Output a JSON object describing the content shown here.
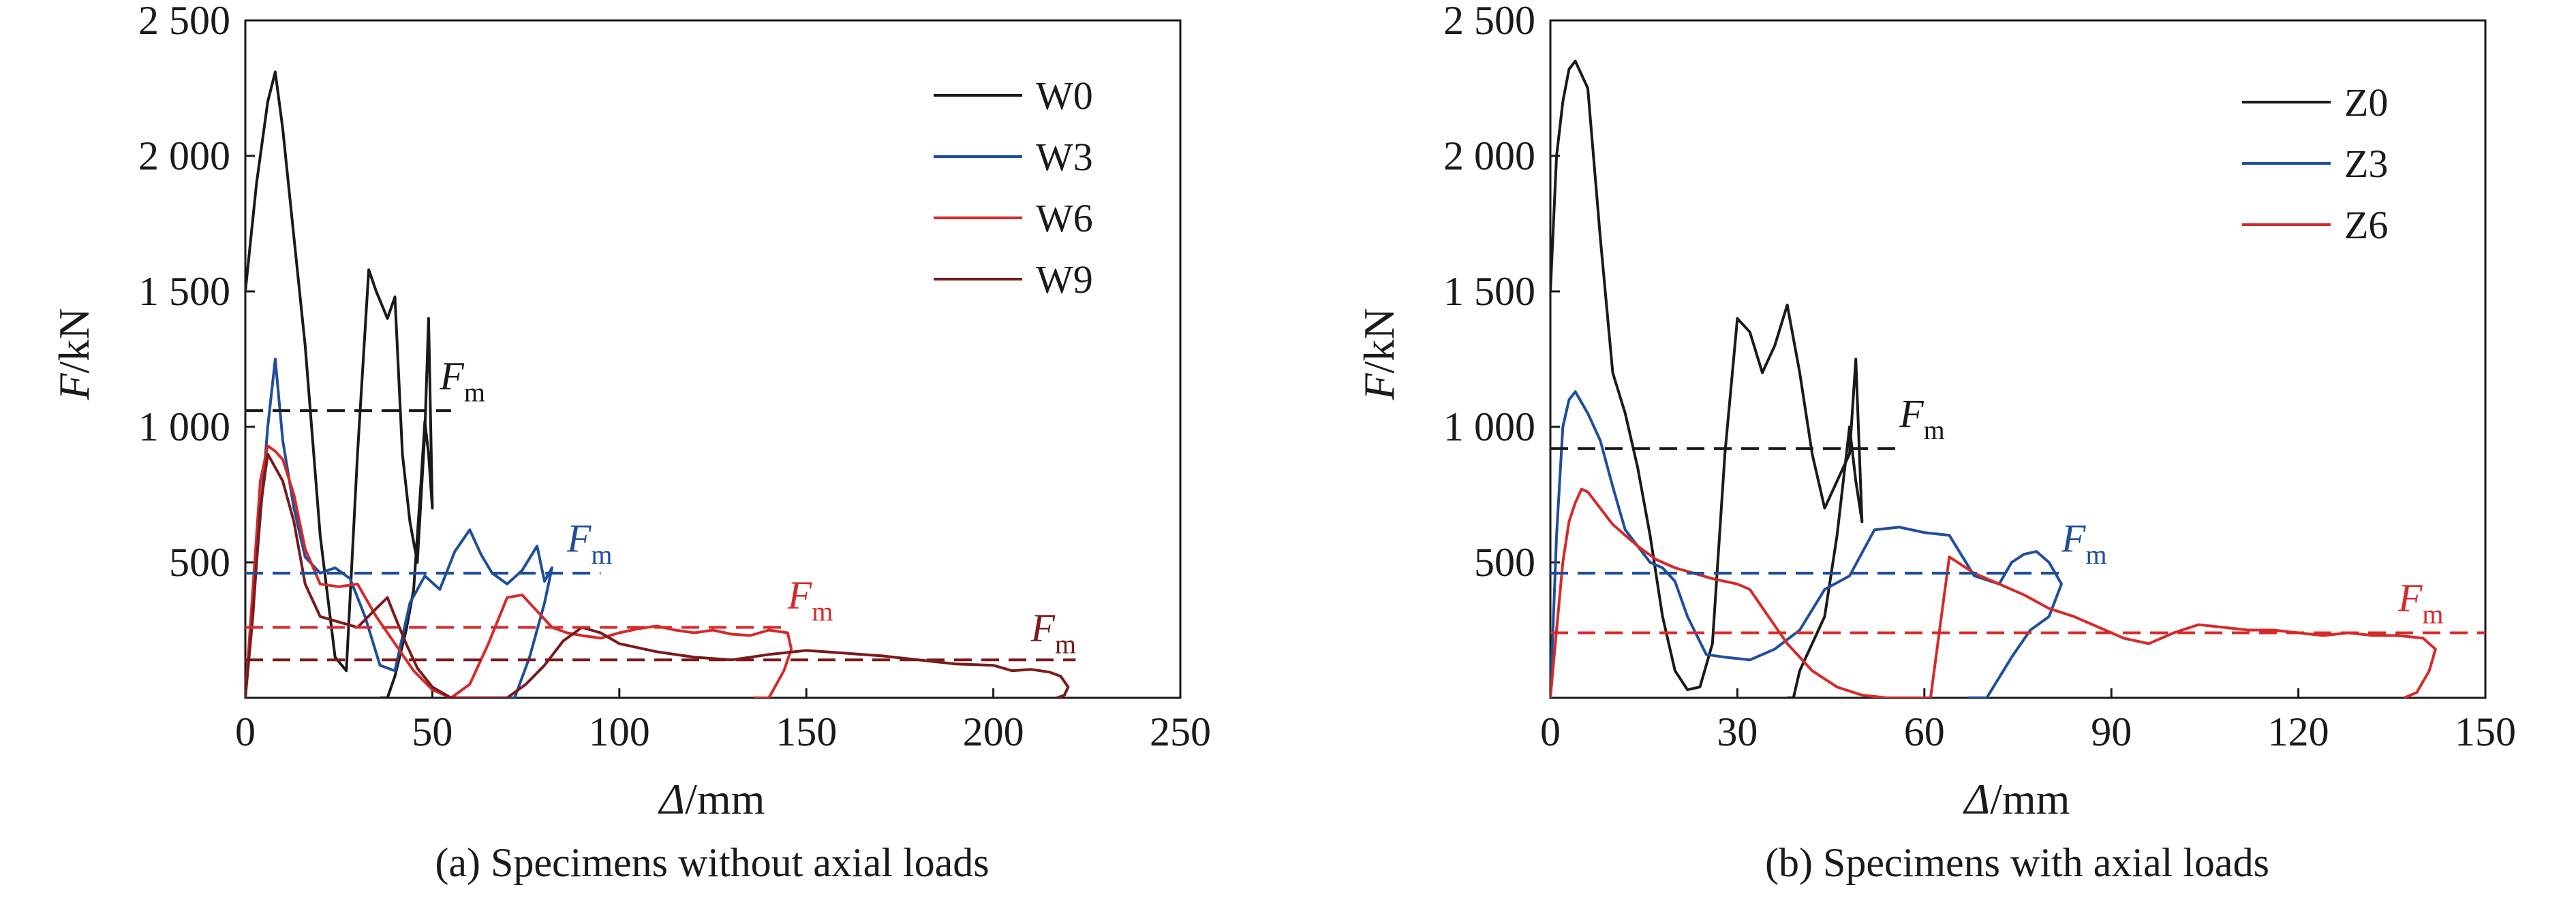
{
  "chart_data": [
    {
      "type": "line",
      "caption": "(a) Specimens without axial loads",
      "ylabel_main": "F",
      "ylabel_unit": "/kN",
      "xlabel_main": "Δ",
      "xlabel_unit": "/mm",
      "xlim": [
        0,
        250
      ],
      "ylim": [
        0,
        2500
      ],
      "xticks": [
        0,
        50,
        100,
        150,
        200,
        250
      ],
      "xtick_labels": [
        "0",
        "50",
        "100",
        "150",
        "200",
        "250"
      ],
      "yticks": [
        500,
        1000,
        1500,
        2000,
        2500
      ],
      "ytick_labels": [
        "500",
        "1 000",
        "1 500",
        "2 000",
        "2 500"
      ],
      "legend_position": "top-right",
      "fm_main": "F",
      "fm_sub": "m",
      "series": [
        {
          "name": "W0",
          "color": "#1a1a1a",
          "x": [
            0,
            3,
            6,
            8,
            10,
            13,
            16,
            20,
            24,
            27,
            30,
            33,
            35,
            38,
            40,
            42,
            44,
            46,
            48,
            49,
            50,
            49,
            48,
            47,
            45,
            43,
            40,
            38,
            36
          ],
          "y": [
            1500,
            1900,
            2200,
            2310,
            2100,
            1700,
            1300,
            600,
            150,
            100,
            900,
            1580,
            1500,
            1400,
            1480,
            900,
            650,
            500,
            980,
            1400,
            700,
            900,
            1020,
            800,
            400,
            250,
            80,
            0,
            0
          ],
          "fm": 1060,
          "fm_x_range": [
            0,
            55
          ],
          "fm_label_x": 52,
          "fm_label_y": 1140
        },
        {
          "name": "W3",
          "color": "#1f4e9c",
          "x": [
            0,
            3,
            6,
            8,
            10,
            13,
            16,
            20,
            24,
            28,
            32,
            36,
            40,
            44,
            48,
            52,
            56,
            60,
            63,
            66,
            70,
            74,
            78,
            80,
            82,
            80,
            76,
            72,
            68,
            65
          ],
          "y": [
            0,
            500,
            1000,
            1250,
            950,
            700,
            520,
            460,
            480,
            440,
            300,
            120,
            100,
            350,
            450,
            400,
            540,
            620,
            530,
            460,
            420,
            470,
            560,
            430,
            480,
            350,
            150,
            0,
            0,
            0
          ],
          "fm": 460,
          "fm_x_range": [
            0,
            95
          ],
          "fm_label_x": 86,
          "fm_label_y": 540
        },
        {
          "name": "W6",
          "color": "#d62a2a",
          "x": [
            0,
            2,
            4,
            6,
            8,
            10,
            13,
            16,
            20,
            25,
            30,
            35,
            40,
            45,
            50,
            55,
            60,
            65,
            70,
            74,
            78,
            82,
            86,
            90,
            95,
            100,
            105,
            110,
            115,
            120,
            125,
            130,
            135,
            140,
            145,
            146,
            144,
            140,
            136
          ],
          "y": [
            0,
            400,
            800,
            930,
            910,
            880,
            750,
            550,
            420,
            410,
            420,
            300,
            200,
            100,
            30,
            0,
            50,
            200,
            370,
            380,
            320,
            260,
            240,
            230,
            220,
            240,
            255,
            265,
            250,
            240,
            250,
            235,
            230,
            250,
            240,
            180,
            100,
            0,
            0
          ],
          "fm": 260,
          "fm_x_range": [
            0,
            145
          ],
          "fm_label_x": 145,
          "fm_label_y": 330
        },
        {
          "name": "W9",
          "color": "#7a1a1a",
          "x": [
            0,
            2,
            4,
            6,
            8,
            10,
            13,
            16,
            20,
            25,
            30,
            35,
            38,
            40,
            43,
            46,
            50,
            55,
            60,
            65,
            70,
            75,
            80,
            85,
            90,
            95,
            100,
            110,
            120,
            130,
            140,
            150,
            160,
            170,
            180,
            190,
            200,
            205,
            210,
            215,
            218,
            220,
            219,
            217
          ],
          "y": [
            0,
            300,
            700,
            900,
            850,
            800,
            650,
            420,
            300,
            280,
            260,
            330,
            370,
            300,
            200,
            110,
            40,
            0,
            0,
            0,
            0,
            50,
            120,
            210,
            260,
            240,
            200,
            170,
            150,
            140,
            160,
            175,
            165,
            155,
            140,
            125,
            120,
            100,
            105,
            95,
            80,
            40,
            10,
            0
          ],
          "fm": 140,
          "fm_x_range": [
            0,
            222
          ],
          "fm_label_x": 210,
          "fm_label_y": 210
        }
      ]
    },
    {
      "type": "line",
      "caption": "(b) Specimens with axial loads",
      "ylabel_main": "F",
      "ylabel_unit": "/kN",
      "xlabel_main": "Δ",
      "xlabel_unit": "/mm",
      "xlim": [
        0,
        150
      ],
      "ylim": [
        0,
        2500
      ],
      "xticks": [
        0,
        30,
        60,
        90,
        120,
        150
      ],
      "xtick_labels": [
        "0",
        "30",
        "60",
        "90",
        "120",
        "150"
      ],
      "yticks": [
        500,
        1000,
        1500,
        2000,
        2500
      ],
      "ytick_labels": [
        "500",
        "1 000",
        "1 500",
        "2 000",
        "2 500"
      ],
      "legend_position": "top-right",
      "fm_main": "F",
      "fm_sub": "m",
      "series": [
        {
          "name": "Z0",
          "color": "#1a1a1a",
          "x": [
            0,
            1,
            2,
            3,
            4,
            5,
            6,
            8,
            10,
            12,
            14,
            16,
            18,
            20,
            22,
            24,
            26,
            28,
            30,
            32,
            34,
            36,
            38,
            40,
            42,
            44,
            46,
            48,
            49,
            50,
            49,
            48,
            46,
            44,
            42,
            40,
            39,
            38
          ],
          "y": [
            1500,
            2000,
            2200,
            2320,
            2350,
            2300,
            2250,
            1700,
            1200,
            1050,
            850,
            600,
            300,
            100,
            30,
            40,
            200,
            900,
            1400,
            1350,
            1200,
            1300,
            1450,
            1200,
            900,
            700,
            800,
            900,
            1250,
            650,
            800,
            1000,
            600,
            300,
            200,
            100,
            0,
            0
          ],
          "fm": 920,
          "fm_x_range": [
            0,
            56
          ],
          "fm_label_x": 56,
          "fm_label_y": 1000
        },
        {
          "name": "Z3",
          "color": "#1f4e9c",
          "x": [
            0,
            1,
            2,
            3,
            4,
            6,
            8,
            10,
            12,
            14,
            16,
            18,
            20,
            22,
            25,
            28,
            32,
            36,
            40,
            44,
            48,
            52,
            56,
            60,
            64,
            68,
            72,
            74,
            76,
            78,
            80,
            82,
            80,
            77,
            74,
            70,
            67
          ],
          "y": [
            0,
            600,
            1000,
            1100,
            1130,
            1050,
            950,
            780,
            620,
            560,
            500,
            480,
            430,
            300,
            160,
            150,
            140,
            180,
            250,
            400,
            450,
            620,
            630,
            610,
            600,
            450,
            420,
            500,
            530,
            540,
            500,
            420,
            300,
            250,
            150,
            0,
            0
          ],
          "fm": 460,
          "fm_x_range": [
            0,
            83
          ],
          "fm_label_x": 82,
          "fm_label_y": 540
        },
        {
          "name": "Z6",
          "color": "#d62a2a",
          "x": [
            0,
            1,
            2,
            3,
            4,
            5,
            6,
            8,
            10,
            12,
            14,
            17,
            20,
            23,
            26,
            28,
            30,
            32,
            35,
            38,
            42,
            46,
            50,
            54,
            58,
            61,
            64,
            68,
            72,
            76,
            80,
            84,
            88,
            92,
            96,
            100,
            104,
            108,
            112,
            116,
            120,
            124,
            128,
            132,
            136,
            140,
            142,
            141,
            139,
            137
          ],
          "y": [
            0,
            250,
            500,
            650,
            720,
            770,
            760,
            700,
            640,
            600,
            560,
            510,
            480,
            460,
            440,
            430,
            420,
            400,
            300,
            200,
            100,
            40,
            10,
            0,
            0,
            0,
            520,
            460,
            420,
            380,
            330,
            300,
            260,
            220,
            200,
            240,
            270,
            260,
            250,
            250,
            240,
            230,
            240,
            230,
            230,
            220,
            180,
            100,
            20,
            0
          ],
          "fm": 240,
          "fm_x_range": [
            0,
            150
          ],
          "fm_label_x": 136,
          "fm_label_y": 320
        }
      ]
    }
  ]
}
